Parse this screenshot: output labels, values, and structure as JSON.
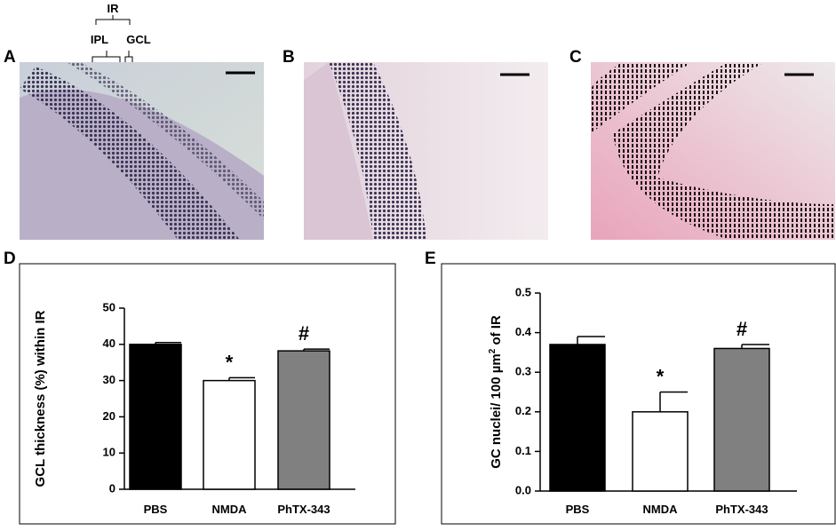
{
  "figure": {
    "images": [
      {
        "label": "A"
      },
      {
        "label": "B"
      },
      {
        "label": "C"
      }
    ],
    "ir_labels": {
      "top": "IR",
      "left": "IPL",
      "right": "GCL"
    }
  },
  "chart_data": [
    {
      "type": "bar",
      "panel": "D",
      "y_label": "GCL thickness (%) within IR",
      "categories": [
        "PBS",
        "NMDA",
        "PhTX-343"
      ],
      "values": [
        40,
        30,
        38.2
      ],
      "errors": [
        0.5,
        0.8,
        0.5
      ],
      "colors": [
        "#000000",
        "#ffffff",
        "#808080"
      ],
      "bar_labels": [
        null,
        "*",
        "#"
      ],
      "ylim": [
        0,
        50
      ],
      "yticks": [
        0,
        10,
        20,
        30,
        40,
        50
      ]
    },
    {
      "type": "bar",
      "panel": "E",
      "y_label": "GC nuclei/ 100 µm",
      "y_label_sup": "2",
      "y_label_end": " of IR",
      "categories": [
        "PBS",
        "NMDA",
        "PhTX-343"
      ],
      "values": [
        0.37,
        0.2,
        0.36
      ],
      "errors": [
        0.02,
        0.05,
        0.01
      ],
      "colors": [
        "#000000",
        "#ffffff",
        "#808080"
      ],
      "bar_labels": [
        null,
        "*",
        "#"
      ],
      "ylim": [
        0,
        0.5
      ],
      "yticks": [
        {
          "value": 0,
          "label": "0.0"
        },
        0.1,
        0.2,
        0.3,
        0.4,
        0.5
      ]
    }
  ]
}
